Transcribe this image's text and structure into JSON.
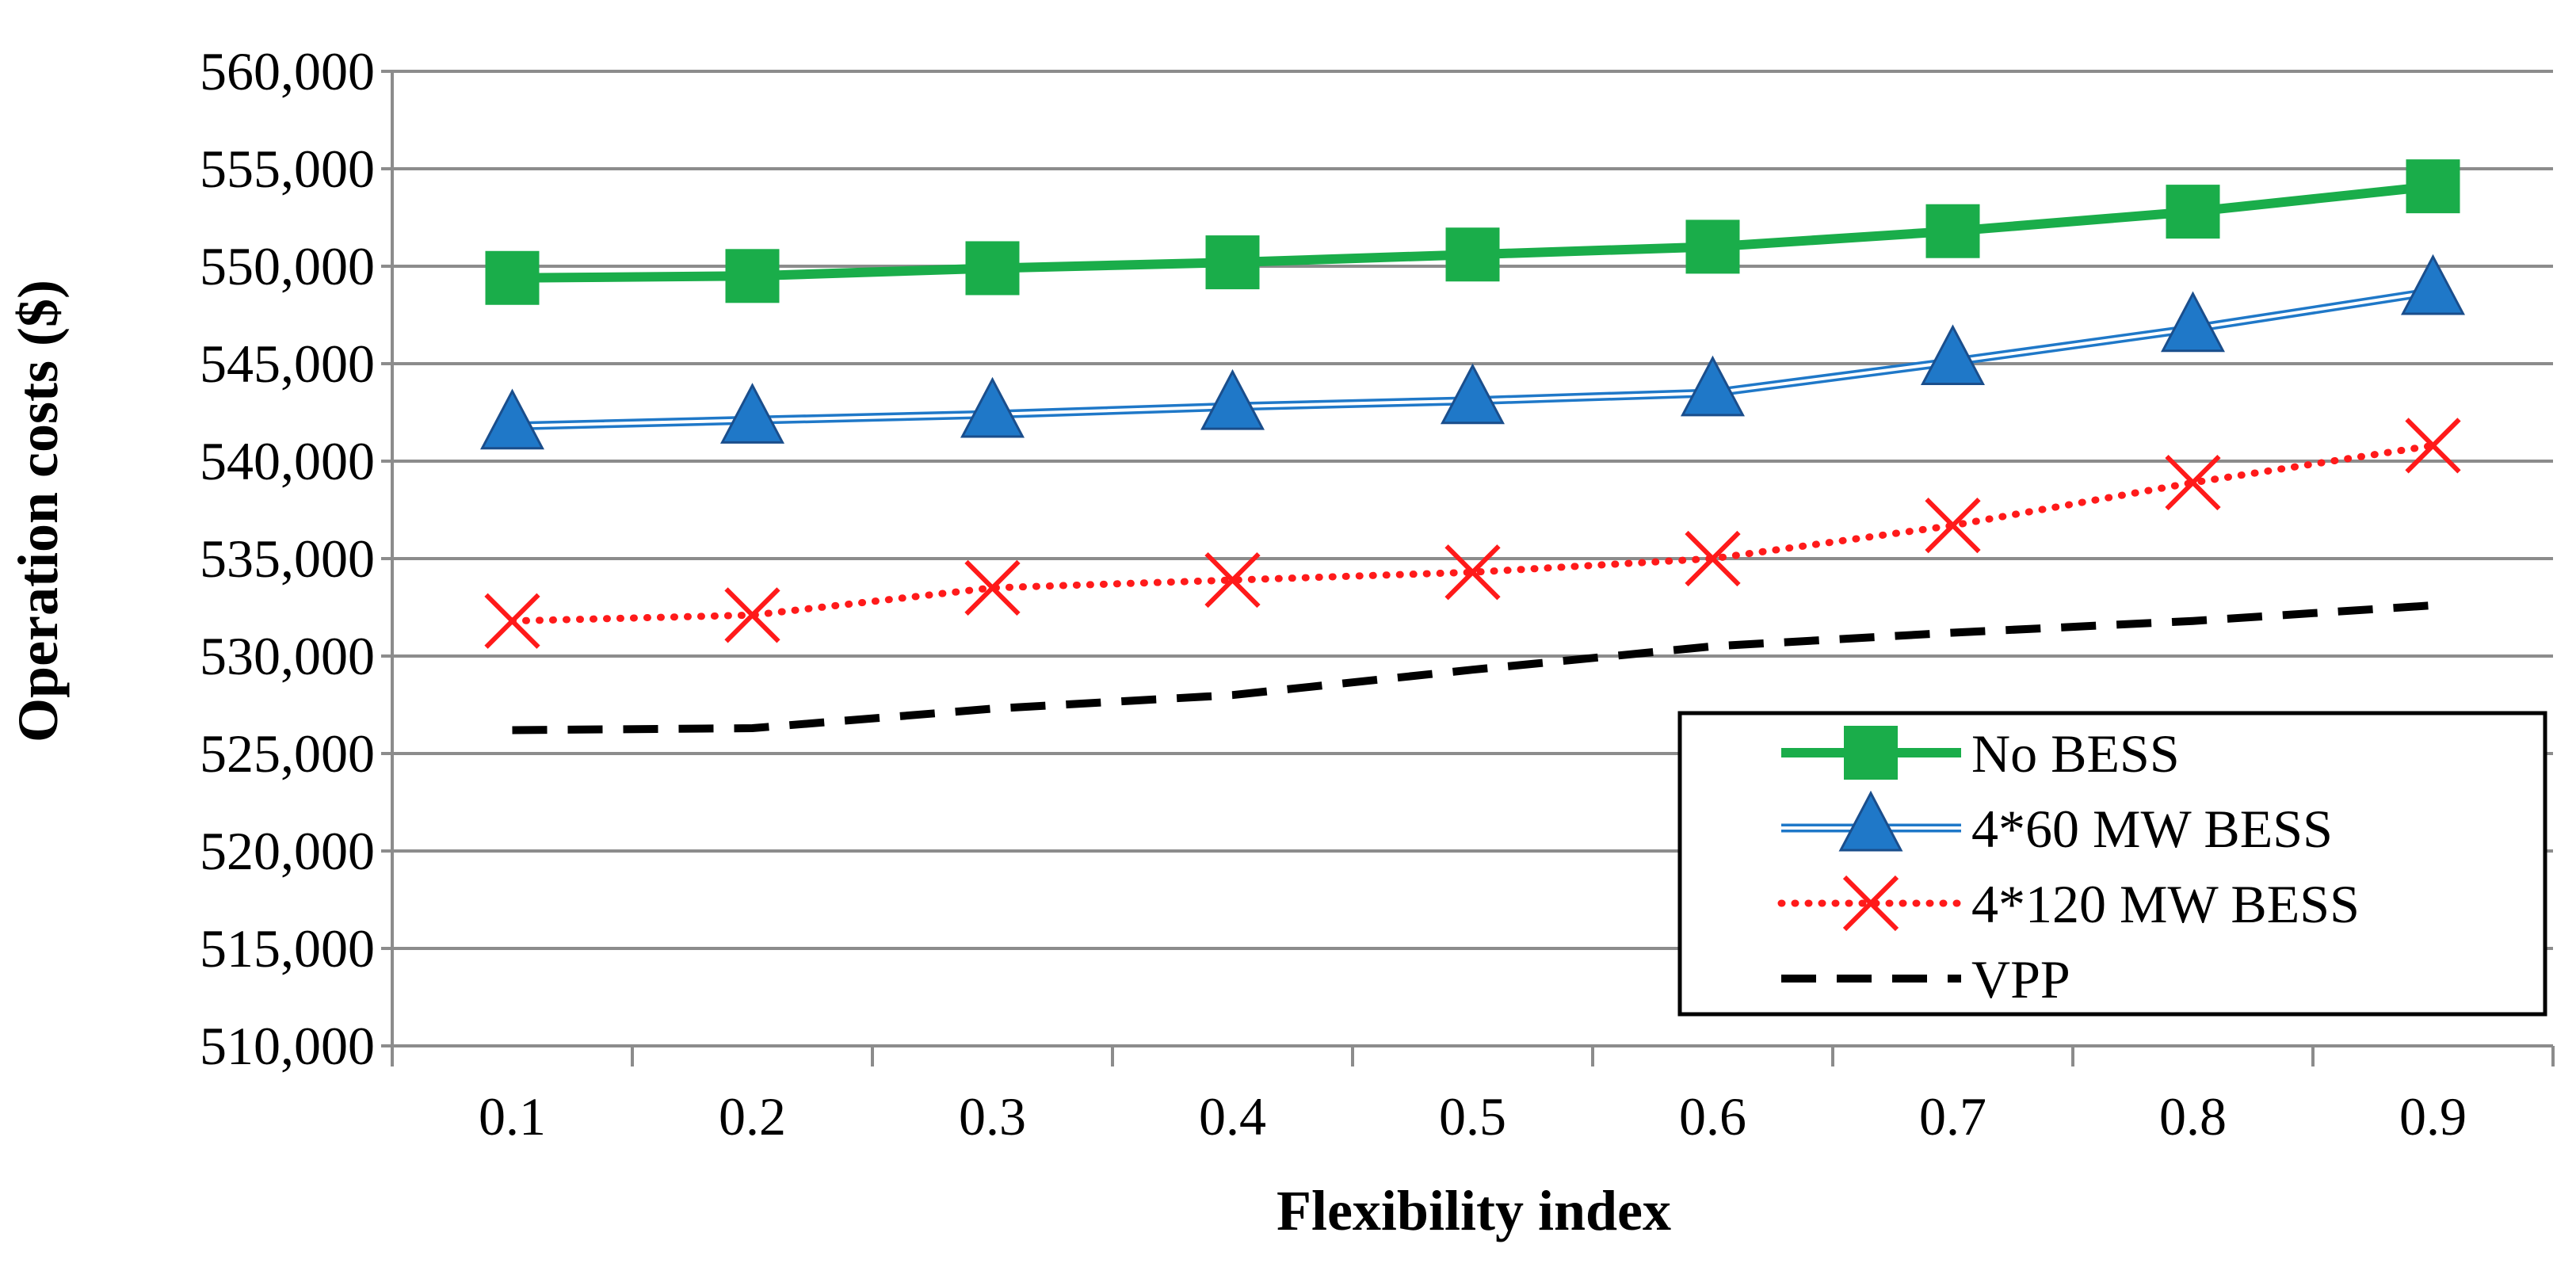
{
  "chart_data": {
    "type": "line",
    "title": "",
    "xlabel": "Flexibility index",
    "ylabel": "Operation costs ($)",
    "ylim": [
      510000,
      560000
    ],
    "yticks": [
      "510,000",
      "515,000",
      "520,000",
      "525,000",
      "530,000",
      "535,000",
      "540,000",
      "545,000",
      "550,000",
      "555,000",
      "560,000"
    ],
    "categories": [
      "0.1",
      "0.2",
      "0.3",
      "0.4",
      "0.5",
      "0.6",
      "0.7",
      "0.8",
      "0.9"
    ],
    "grid": "horizontal",
    "legend_position": "bottom-right",
    "series": [
      {
        "name": "No BESS",
        "color": "#1aad4a",
        "style": "solid-thick",
        "marker": "square",
        "values": [
          549400,
          549500,
          549900,
          550200,
          550600,
          551000,
          551800,
          552800,
          554100
        ]
      },
      {
        "name": "4*60 MW BESS",
        "color": "#1f78c8",
        "style": "double-line",
        "marker": "triangle",
        "values": [
          541800,
          542100,
          542400,
          542800,
          543100,
          543500,
          545100,
          546800,
          548700
        ]
      },
      {
        "name": "4*120 MW BESS",
        "color": "#ff1a1a",
        "style": "dotted",
        "marker": "x",
        "values": [
          531800,
          532100,
          533500,
          533900,
          534300,
          535000,
          536700,
          538900,
          540800
        ]
      },
      {
        "name": "VPP",
        "color": "#000000",
        "style": "dashed",
        "marker": "none",
        "values": [
          526200,
          526300,
          527300,
          528000,
          529300,
          530500,
          531200,
          531800,
          532600
        ]
      }
    ]
  }
}
